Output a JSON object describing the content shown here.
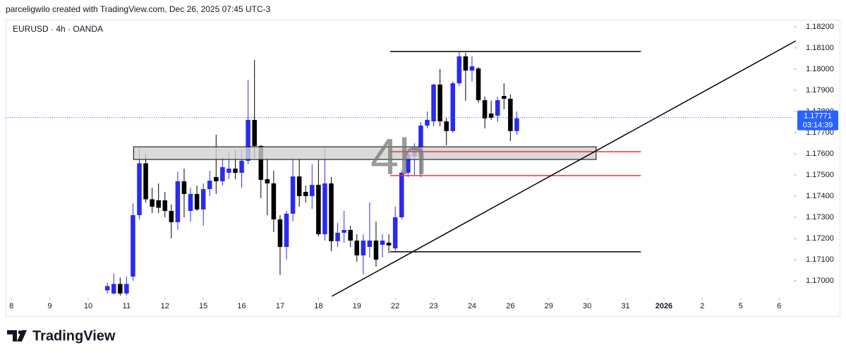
{
  "chart_data": {
    "type": "candlestick",
    "attribution": "parceligwilo created with TradingView.com, Dec 26, 2025 07:45 UTC-3",
    "title": "EURUSD · 4h · OANDA",
    "watermark": "4h",
    "brand": "TradingView",
    "up_color": "#2a2af0",
    "down_color": "#000000",
    "open": [
      1.16955,
      1.1694,
      1.16985,
      1.1694,
      1.1702,
      1.1731,
      1.17555,
      1.17385,
      1.1738,
      1.1738,
      1.1733,
      1.17277,
      1.1747,
      1.1733,
      1.1741,
      1.17337,
      1.17433,
      1.1749,
      1.1747,
      1.1751,
      1.1753,
      1.1751,
      1.17567,
      1.1776,
      1.17637,
      1.1748,
      1.1746,
      1.1729,
      1.1716,
      1.17317,
      1.17493,
      1.1742,
      1.174,
      1.17453,
      1.1722,
      1.1746,
      1.17187,
      1.17227,
      1.1724,
      1.1719,
      1.1712,
      1.1716,
      1.1719,
      1.1717,
      1.1718,
      1.17153,
      1.173,
      1.1751,
      1.17587,
      1.17587,
      1.17733,
      1.17753,
      1.17927,
      1.17753,
      1.17707,
      1.17933,
      1.1806,
      1.17993,
      1.18003,
      1.17853,
      1.1779,
      1.1778,
      1.17873,
      1.1786,
      1.17707
    ],
    "high": [
      1.1699,
      1.17035,
      1.17015,
      1.1702,
      1.17365,
      1.17627,
      1.176,
      1.1744,
      1.1746,
      1.1742,
      1.1736,
      1.17515,
      1.1753,
      1.1744,
      1.1745,
      1.1746,
      1.1752,
      1.1769,
      1.1758,
      1.1761,
      1.1762,
      1.1762,
      1.1795,
      1.18043,
      1.1764,
      1.1758,
      1.1752,
      1.1731,
      1.1733,
      1.17577,
      1.17577,
      1.1745,
      1.1755,
      1.1757,
      1.17633,
      1.1749,
      1.17273,
      1.1733,
      1.1726,
      1.1722,
      1.1722,
      1.1737,
      1.1728,
      1.1722,
      1.1722,
      1.1735,
      1.1752,
      1.1763,
      1.1765,
      1.1775,
      1.178,
      1.1793,
      1.18,
      1.1777,
      1.17943,
      1.1808,
      1.18077,
      1.1806,
      1.1801,
      1.1787,
      1.1785,
      1.1787,
      1.17933,
      1.1788,
      1.178
    ],
    "low": [
      1.1694,
      1.16935,
      1.1693,
      1.1693,
      1.17,
      1.1729,
      1.1737,
      1.1732,
      1.1732,
      1.173,
      1.172,
      1.1724,
      1.173,
      1.1728,
      1.1733,
      1.1726,
      1.174,
      1.1741,
      1.1745,
      1.1748,
      1.1748,
      1.1744,
      1.1755,
      1.1758,
      1.1739,
      1.1731,
      1.1723,
      1.17027,
      1.171,
      1.1728,
      1.1735,
      1.1737,
      1.1734,
      1.1721,
      1.1719,
      1.1714,
      1.1716,
      1.1718,
      1.1716,
      1.1709,
      1.1703,
      1.1711,
      1.17067,
      1.1711,
      1.1713,
      1.1714,
      1.1729,
      1.1749,
      1.175,
      1.1749,
      1.1772,
      1.1773,
      1.1773,
      1.1764,
      1.177,
      1.1792,
      1.1785,
      1.1794,
      1.1784,
      1.1772,
      1.1776,
      1.1775,
      1.1781,
      1.1766,
      1.1769
    ],
    "close": [
      1.16975,
      1.16985,
      1.1694,
      1.16985,
      1.1731,
      1.17555,
      1.17385,
      1.1735,
      1.17345,
      1.1733,
      1.17277,
      1.1747,
      1.1741,
      1.1741,
      1.17337,
      1.17433,
      1.17473,
      1.1747,
      1.17537,
      1.1753,
      1.1751,
      1.17567,
      1.1776,
      1.17637,
      1.17477,
      1.1746,
      1.1729,
      1.1716,
      1.17317,
      1.17493,
      1.174,
      1.174,
      1.17453,
      1.1722,
      1.1746,
      1.17187,
      1.17227,
      1.1724,
      1.1719,
      1.1712,
      1.1719,
      1.1719,
      1.171,
      1.1719,
      1.17167,
      1.173,
      1.1751,
      1.176,
      1.17627,
      1.17733,
      1.1776,
      1.17927,
      1.17753,
      1.17707,
      1.17933,
      1.1806,
      1.17993,
      1.18013,
      1.17853,
      1.17767,
      1.1777,
      1.17853,
      1.1786,
      1.17707,
      1.17767
    ],
    "xlim": [
      -15.9,
      107.3
    ],
    "xticks": [
      {
        "value": -15,
        "label": "8"
      },
      {
        "value": -9,
        "label": "9"
      },
      {
        "value": -3,
        "label": "10"
      },
      {
        "value": 3,
        "label": "11"
      },
      {
        "value": 9,
        "label": "12"
      },
      {
        "value": 15,
        "label": "15"
      },
      {
        "value": 21,
        "label": "16"
      },
      {
        "value": 27,
        "label": "17"
      },
      {
        "value": 33,
        "label": "18"
      },
      {
        "value": 39,
        "label": "19"
      },
      {
        "value": 45,
        "label": "22"
      },
      {
        "value": 51,
        "label": "23"
      },
      {
        "value": 57,
        "label": "24"
      },
      {
        "value": 63,
        "label": "26"
      },
      {
        "value": 69,
        "label": "29"
      },
      {
        "value": 75,
        "label": "30"
      },
      {
        "value": 81,
        "label": "31"
      },
      {
        "value": 87,
        "label": "2026"
      },
      {
        "value": 93,
        "label": "2"
      },
      {
        "value": 99,
        "label": "5"
      },
      {
        "value": 105,
        "label": "6"
      }
    ],
    "ylim": [
      1.1692,
      1.18233
    ],
    "yticks": [
      {
        "value": 1.182,
        "label": "1.18200"
      },
      {
        "value": 1.181,
        "label": "1.18100"
      },
      {
        "value": 1.18,
        "label": "1.18000"
      },
      {
        "value": 1.179,
        "label": "1.17900"
      },
      {
        "value": 1.178,
        "label": "1.17800"
      },
      {
        "value": 1.177,
        "label": "1.17700"
      },
      {
        "value": 1.176,
        "label": "1.17600"
      },
      {
        "value": 1.175,
        "label": "1.17500"
      },
      {
        "value": 1.174,
        "label": "1.17400"
      },
      {
        "value": 1.173,
        "label": "1.17300"
      },
      {
        "value": 1.172,
        "label": "1.17200"
      },
      {
        "value": 1.171,
        "label": "1.17100"
      },
      {
        "value": 1.17,
        "label": "1.17000"
      }
    ],
    "last_price": 1.17771,
    "countdown": "03:14:39",
    "last_price_color": "#2962ff",
    "drawings": [
      {
        "type": "rect",
        "x": [
          4.1,
          76.4
        ],
        "y": [
          1.17573,
          1.17633
        ],
        "color": "#000000",
        "fill": "#d1d1d1"
      },
      {
        "type": "line",
        "x": [
          44.2,
          83.4
        ],
        "y": [
          1.18083,
          1.18083
        ],
        "color": "#000000"
      },
      {
        "type": "line",
        "x": [
          44.2,
          83.4
        ],
        "y": [
          1.17137,
          1.17137
        ],
        "color": "#000000"
      },
      {
        "type": "line",
        "x": [
          44.2,
          83.4
        ],
        "y": [
          1.1761,
          1.1761
        ],
        "color": "#e53935"
      },
      {
        "type": "line",
        "x": [
          44.2,
          83.4
        ],
        "y": [
          1.17497,
          1.17497
        ],
        "color": "#e53935"
      },
      {
        "type": "line",
        "x": [
          35.1,
          107.6
        ],
        "y": [
          1.16927,
          1.18133
        ],
        "color": "#000000"
      }
    ]
  }
}
